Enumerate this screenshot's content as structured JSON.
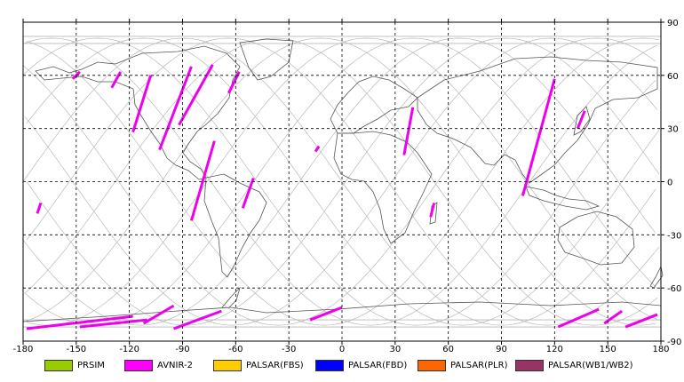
{
  "map": {
    "lon_ticks": [
      "-180",
      "-150",
      "-120",
      "-90",
      "-60",
      "-30",
      "0",
      "30",
      "60",
      "90",
      "120",
      "150",
      "180"
    ],
    "lat_ticks": [
      "90",
      "60",
      "30",
      "0",
      "-30",
      "-60",
      "-90"
    ]
  },
  "legend": [
    {
      "label": "PRSIM",
      "color": "#99cc00"
    },
    {
      "label": "AVNIR-2",
      "color": "#ff00ff"
    },
    {
      "label": "PALSAR(FBS)",
      "color": "#ffcc00"
    },
    {
      "label": "PALSAR(FBD)",
      "color": "#0000ff"
    },
    {
      "label": "PALSAR(PLR)",
      "color": "#ff6600"
    },
    {
      "label": "PALSAR(WB1/WB2)",
      "color": "#993366"
    }
  ],
  "colors": {
    "orbit": "#b8b8b8",
    "coast": "#555555",
    "swath": "#ee00ee",
    "grid": "#000000"
  }
}
